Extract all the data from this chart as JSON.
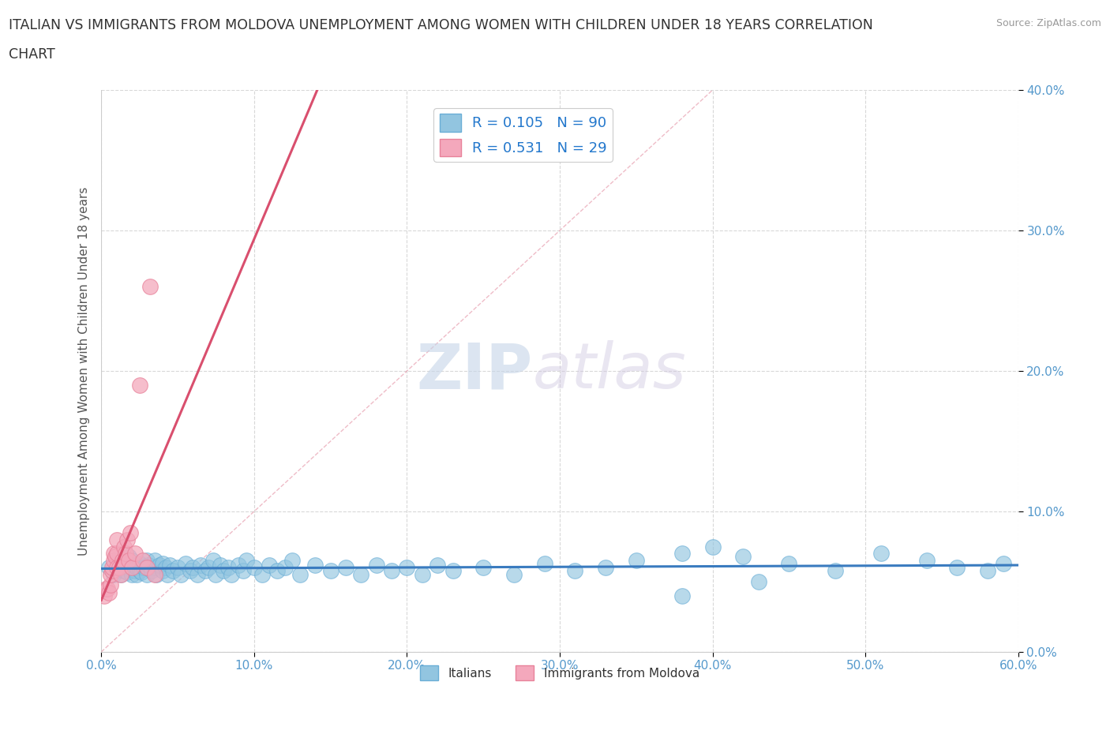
{
  "title_line1": "ITALIAN VS IMMIGRANTS FROM MOLDOVA UNEMPLOYMENT AMONG WOMEN WITH CHILDREN UNDER 18 YEARS CORRELATION",
  "title_line2": "CHART",
  "source_text": "Source: ZipAtlas.com",
  "ylabel": "Unemployment Among Women with Children Under 18 years",
  "xlim": [
    0.0,
    0.6
  ],
  "ylim": [
    0.0,
    0.4
  ],
  "xticks": [
    0.0,
    0.1,
    0.2,
    0.3,
    0.4,
    0.5,
    0.6
  ],
  "yticks": [
    0.0,
    0.1,
    0.2,
    0.3,
    0.4
  ],
  "xtick_labels": [
    "0.0%",
    "10.0%",
    "20.0%",
    "30.0%",
    "40.0%",
    "50.0%",
    "60.0%"
  ],
  "ytick_labels_right": [
    "0.0%",
    "10.0%",
    "20.0%",
    "30.0%",
    "40.0%"
  ],
  "italian_color": "#92c5e0",
  "moldova_color": "#f4a8bc",
  "italian_edge": "#6aaed6",
  "moldova_edge": "#e8829a",
  "trend_italian_color": "#3a7bbf",
  "trend_moldova_color": "#d94f6e",
  "diag_color": "#e8a0b0",
  "legend_italian_label": "R = 0.105   N = 90",
  "legend_moldova_label": "R = 0.531   N = 29",
  "legend_italians": "Italians",
  "legend_moldova": "Immigrants from Moldova",
  "watermark_zip": "ZIP",
  "watermark_atlas": "atlas",
  "background_color": "#ffffff",
  "tick_color": "#5599cc",
  "italian_x": [
    0.005,
    0.008,
    0.01,
    0.01,
    0.012,
    0.013,
    0.015,
    0.015,
    0.016,
    0.017,
    0.018,
    0.018,
    0.02,
    0.02,
    0.02,
    0.022,
    0.022,
    0.023,
    0.023,
    0.025,
    0.025,
    0.026,
    0.028,
    0.03,
    0.03,
    0.031,
    0.033,
    0.035,
    0.035,
    0.036,
    0.038,
    0.04,
    0.04,
    0.042,
    0.043,
    0.045,
    0.047,
    0.05,
    0.052,
    0.055,
    0.058,
    0.06,
    0.063,
    0.065,
    0.068,
    0.07,
    0.073,
    0.075,
    0.078,
    0.08,
    0.083,
    0.085,
    0.09,
    0.093,
    0.095,
    0.1,
    0.105,
    0.11,
    0.115,
    0.12,
    0.125,
    0.13,
    0.14,
    0.15,
    0.16,
    0.17,
    0.18,
    0.19,
    0.2,
    0.21,
    0.22,
    0.23,
    0.25,
    0.27,
    0.29,
    0.31,
    0.33,
    0.35,
    0.38,
    0.4,
    0.42,
    0.45,
    0.48,
    0.51,
    0.54,
    0.56,
    0.58,
    0.59,
    0.38,
    0.43
  ],
  "italian_y": [
    0.06,
    0.055,
    0.058,
    0.065,
    0.06,
    0.055,
    0.063,
    0.058,
    0.062,
    0.057,
    0.06,
    0.068,
    0.055,
    0.06,
    0.065,
    0.058,
    0.062,
    0.055,
    0.06,
    0.058,
    0.063,
    0.057,
    0.06,
    0.065,
    0.055,
    0.062,
    0.058,
    0.06,
    0.065,
    0.055,
    0.062,
    0.058,
    0.063,
    0.06,
    0.055,
    0.062,
    0.058,
    0.06,
    0.055,
    0.063,
    0.058,
    0.06,
    0.055,
    0.062,
    0.058,
    0.06,
    0.065,
    0.055,
    0.062,
    0.058,
    0.06,
    0.055,
    0.062,
    0.058,
    0.065,
    0.06,
    0.055,
    0.062,
    0.058,
    0.06,
    0.065,
    0.055,
    0.062,
    0.058,
    0.06,
    0.055,
    0.062,
    0.058,
    0.06,
    0.055,
    0.062,
    0.058,
    0.06,
    0.055,
    0.063,
    0.058,
    0.06,
    0.065,
    0.07,
    0.075,
    0.068,
    0.063,
    0.058,
    0.07,
    0.065,
    0.06,
    0.058,
    0.063,
    0.04,
    0.05
  ],
  "moldova_x": [
    0.002,
    0.003,
    0.004,
    0.005,
    0.006,
    0.006,
    0.007,
    0.007,
    0.008,
    0.008,
    0.009,
    0.01,
    0.01,
    0.01,
    0.012,
    0.013,
    0.014,
    0.015,
    0.016,
    0.017,
    0.018,
    0.019,
    0.02,
    0.022,
    0.025,
    0.027,
    0.03,
    0.032,
    0.035
  ],
  "moldova_y": [
    0.04,
    0.045,
    0.045,
    0.042,
    0.048,
    0.055,
    0.058,
    0.06,
    0.065,
    0.07,
    0.068,
    0.06,
    0.07,
    0.08,
    0.06,
    0.055,
    0.065,
    0.075,
    0.07,
    0.08,
    0.065,
    0.085,
    0.06,
    0.07,
    0.19,
    0.065,
    0.06,
    0.26,
    0.055
  ]
}
